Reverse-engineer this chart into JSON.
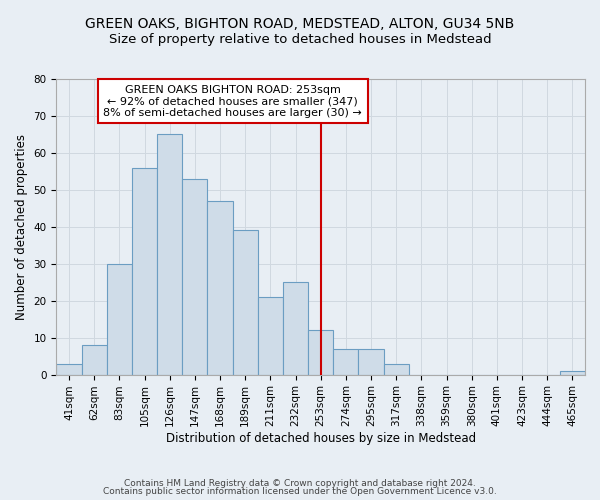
{
  "title": "GREEN OAKS, BIGHTON ROAD, MEDSTEAD, ALTON, GU34 5NB",
  "subtitle": "Size of property relative to detached houses in Medstead",
  "xlabel": "Distribution of detached houses by size in Medstead",
  "ylabel": "Number of detached properties",
  "footer_line1": "Contains HM Land Registry data © Crown copyright and database right 2024.",
  "footer_line2": "Contains public sector information licensed under the Open Government Licence v3.0.",
  "bin_labels": [
    "41sqm",
    "62sqm",
    "83sqm",
    "105sqm",
    "126sqm",
    "147sqm",
    "168sqm",
    "189sqm",
    "211sqm",
    "232sqm",
    "253sqm",
    "274sqm",
    "295sqm",
    "317sqm",
    "338sqm",
    "359sqm",
    "380sqm",
    "401sqm",
    "423sqm",
    "444sqm",
    "465sqm"
  ],
  "bar_heights": [
    3,
    8,
    30,
    56,
    65,
    53,
    47,
    39,
    21,
    25,
    12,
    7,
    7,
    3,
    0,
    0,
    0,
    0,
    0,
    0,
    1
  ],
  "bar_color": "#cfdce8",
  "bar_edge_color": "#6b9dc2",
  "vline_x_index": 10,
  "vline_color": "#cc0000",
  "annotation_text": "GREEN OAKS BIGHTON ROAD: 253sqm\n← 92% of detached houses are smaller (347)\n8% of semi-detached houses are larger (30) →",
  "annotation_box_color": "#ffffff",
  "annotation_box_edge_color": "#cc0000",
  "ylim": [
    0,
    80
  ],
  "yticks": [
    0,
    10,
    20,
    30,
    40,
    50,
    60,
    70,
    80
  ],
  "grid_color": "#d0d8e0",
  "background_color": "#e8eef4",
  "title_fontsize": 10,
  "subtitle_fontsize": 9.5,
  "axis_label_fontsize": 8.5,
  "tick_fontsize": 7.5,
  "annotation_fontsize": 8,
  "footer_fontsize": 6.5
}
